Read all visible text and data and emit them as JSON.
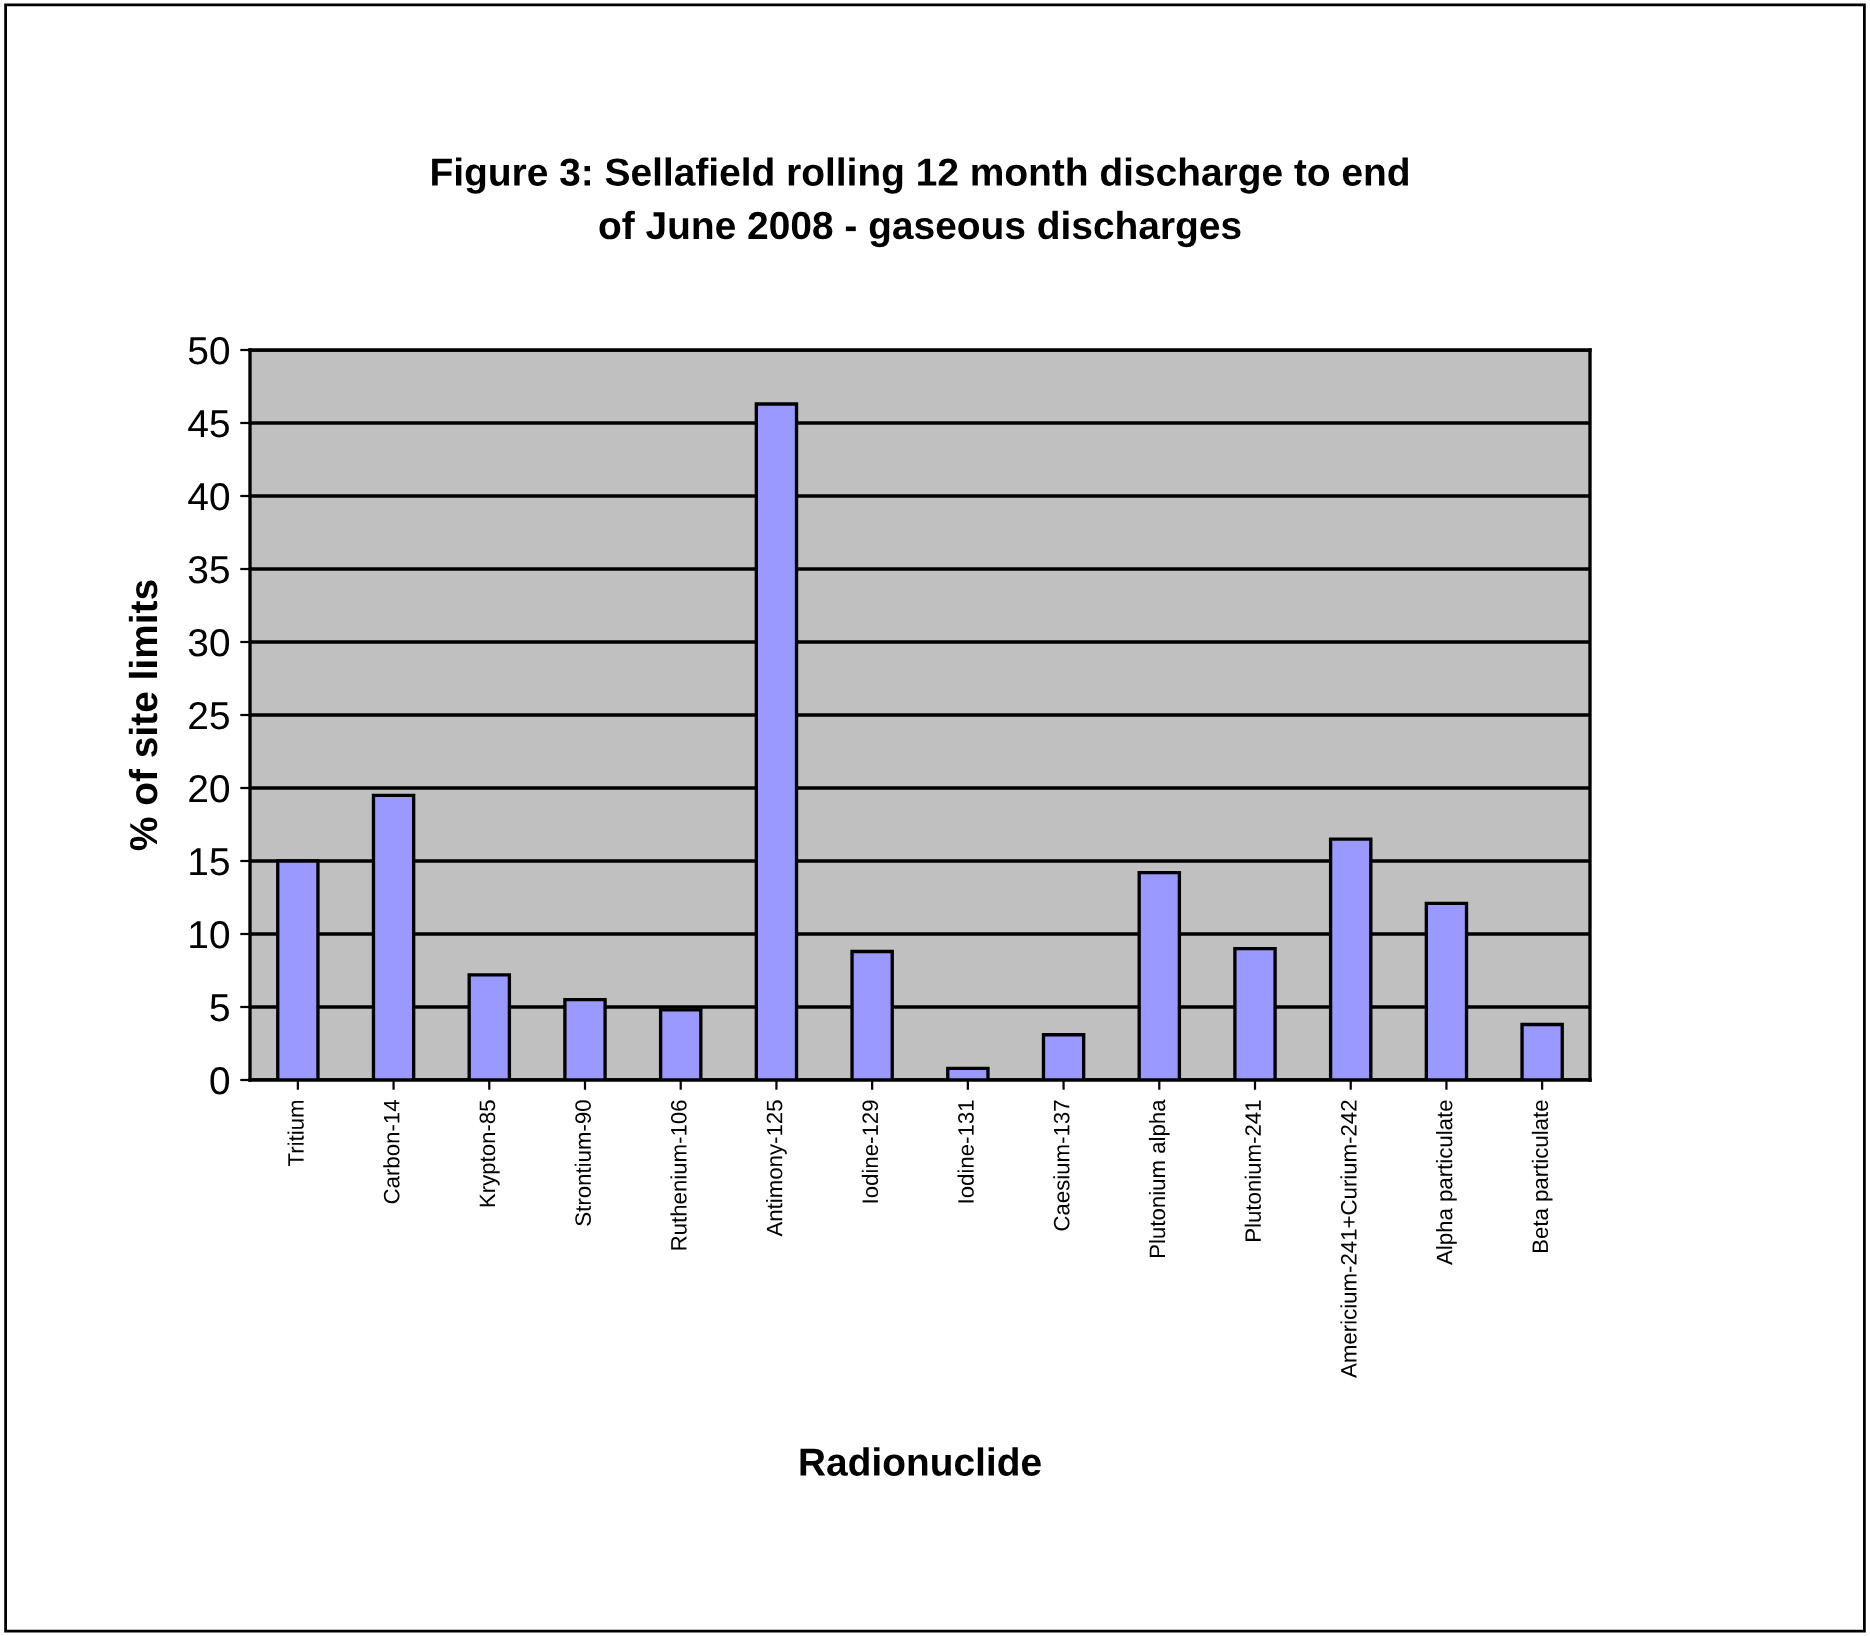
{
  "chart_data": {
    "type": "bar",
    "title": "Figure 3: Sellafield rolling 12 month discharge to end\nof June 2008 - gaseous discharges",
    "xlabel": "Radionuclide",
    "ylabel": "% of site limits",
    "categories": [
      "Tritium",
      "Carbon-14",
      "Krypton-85",
      "Strontium-90",
      "Ruthenium-106",
      "Antimony-125",
      "Iodine-129",
      "Iodine-131",
      "Caesium-137",
      "Plutonium alpha",
      "Plutonium-241",
      "Americium-241+Curium-242",
      "Alpha particulate",
      "Beta particulate"
    ],
    "values": [
      15,
      19.5,
      7.2,
      5.5,
      4.8,
      46.3,
      8.8,
      0.8,
      3.1,
      14.2,
      9.0,
      16.5,
      12.1,
      3.8
    ],
    "color": "#9999ff",
    "ylim": [
      0,
      50
    ],
    "yticks": [
      0,
      5,
      10,
      15,
      20,
      25,
      30,
      35,
      40,
      45,
      50
    ],
    "grid": "y",
    "legend": false
  }
}
